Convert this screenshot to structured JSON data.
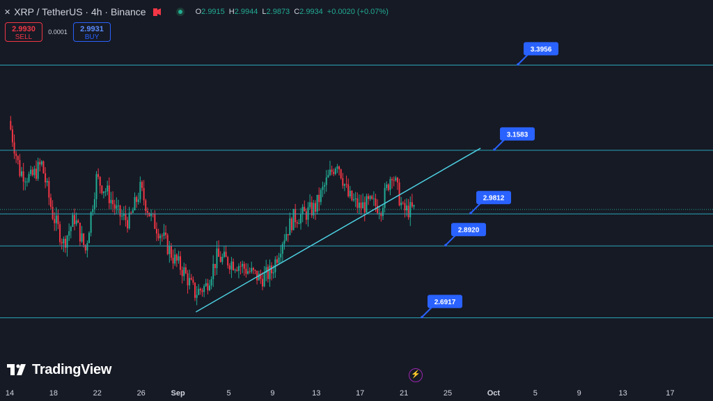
{
  "header": {
    "symbol_icon": "xrp-icon",
    "title": "XRP / TetherUS · 4h · Binance",
    "ohlc": [
      {
        "k": "O",
        "v": "2.9915"
      },
      {
        "k": "H",
        "v": "2.9944"
      },
      {
        "k": "L",
        "v": "2.9873"
      },
      {
        "k": "C",
        "v": "2.9934"
      },
      {
        "k": "",
        "v": "+0.0020 (+0.07%)"
      }
    ]
  },
  "trade": {
    "sell_price": "2.9930",
    "sell_label": "SELL",
    "spread": "0.0001",
    "buy_price": "2.9931",
    "buy_label": "BUY"
  },
  "logo": {
    "text": "TradingView"
  },
  "colors": {
    "background": "#161a25",
    "up": "#22ab94",
    "down": "#f23645",
    "level_line": "#2aa4b8",
    "trendline": "#4dd0e1",
    "label_bg": "#2962ff"
  },
  "chart_data": {
    "type": "candlestick",
    "timeframe": "4h",
    "x_ticks": [
      "14",
      "18",
      "22",
      "26",
      "Sep",
      "5",
      "9",
      "13",
      "17",
      "21",
      "25",
      "Oct",
      "5",
      "9",
      "13",
      "17"
    ],
    "ylim": [
      2.5897,
      3.5177
    ],
    "horizontal_levels": [
      {
        "value": 3.3956,
        "label": "3.3956"
      },
      {
        "value": 3.1583,
        "label": "3.1583"
      },
      {
        "value": 2.9812,
        "label": "2.9812"
      },
      {
        "value": 2.892,
        "label": "2.8920"
      },
      {
        "value": 2.6917,
        "label": "2.6917"
      }
    ],
    "trendline": {
      "from": {
        "date": "Aug 31",
        "price": 2.708
      },
      "to": {
        "date": "Sep 26",
        "price": 3.164
      }
    },
    "current_price": 2.9934,
    "price_series": [
      {
        "date": "Aug 14",
        "price": 3.24
      },
      {
        "date": "Aug 15",
        "price": 3.1
      },
      {
        "date": "Aug 16",
        "price": 3.08
      },
      {
        "date": "Aug 17",
        "price": 3.12
      },
      {
        "date": "Aug 18",
        "price": 2.98
      },
      {
        "date": "Aug 19",
        "price": 2.9
      },
      {
        "date": "Aug 20",
        "price": 2.97
      },
      {
        "date": "Aug 21",
        "price": 2.88
      },
      {
        "date": "Aug 22",
        "price": 3.08
      },
      {
        "date": "Aug 23",
        "price": 3.04
      },
      {
        "date": "Aug 24",
        "price": 2.98
      },
      {
        "date": "Aug 25",
        "price": 2.96
      },
      {
        "date": "Aug 26",
        "price": 3.05
      },
      {
        "date": "Aug 27",
        "price": 2.97
      },
      {
        "date": "Aug 28",
        "price": 2.92
      },
      {
        "date": "Aug 29",
        "price": 2.86
      },
      {
        "date": "Aug 30",
        "price": 2.82
      },
      {
        "date": "Aug 31",
        "price": 2.76
      },
      {
        "date": "Sep 1",
        "price": 2.78
      },
      {
        "date": "Sep 2",
        "price": 2.86
      },
      {
        "date": "Sep 3",
        "price": 2.85
      },
      {
        "date": "Sep 4",
        "price": 2.84
      },
      {
        "date": "Sep 5",
        "price": 2.82
      },
      {
        "date": "Sep 6",
        "price": 2.8
      },
      {
        "date": "Sep 7",
        "price": 2.82
      },
      {
        "date": "Sep 8",
        "price": 2.91
      },
      {
        "date": "Sep 9",
        "price": 2.97
      },
      {
        "date": "Sep 10",
        "price": 2.98
      },
      {
        "date": "Sep 11",
        "price": 3.0
      },
      {
        "date": "Sep 12",
        "price": 3.07
      },
      {
        "date": "Sep 13",
        "price": 3.13
      },
      {
        "date": "Sep 14",
        "price": 3.03
      },
      {
        "date": "Sep 15",
        "price": 3.0
      },
      {
        "date": "Sep 16",
        "price": 3.01
      },
      {
        "date": "Sep 17",
        "price": 3.0
      },
      {
        "date": "Sep 18",
        "price": 3.1
      },
      {
        "date": "Sep 19",
        "price": 2.99
      },
      {
        "date": "Sep 20",
        "price": 2.9934
      }
    ]
  }
}
